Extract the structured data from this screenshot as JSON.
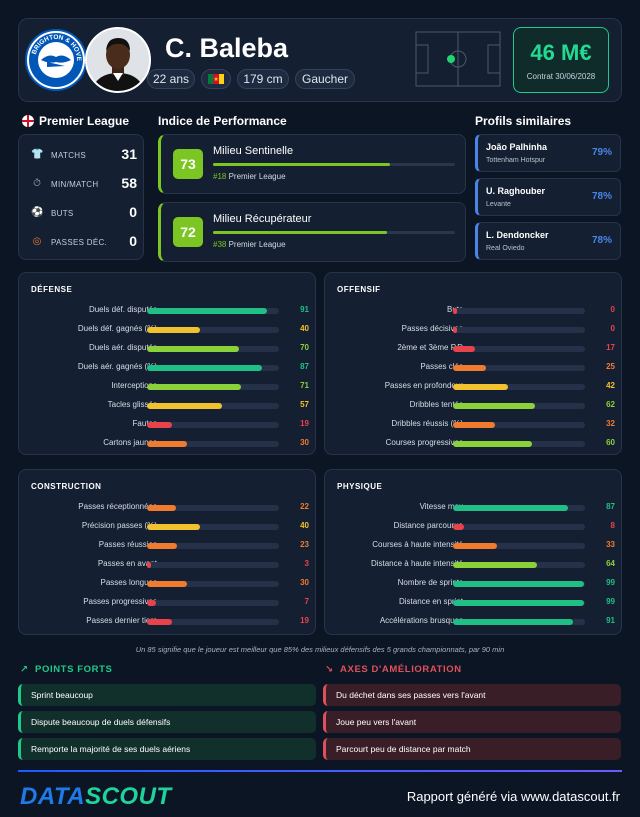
{
  "player": {
    "name": "C. Baleba",
    "age": "22 ans",
    "height": "179 cm",
    "foot": "Gaucher",
    "market_value": "46 M€",
    "contract": "Contrat 30/06/2028"
  },
  "club": {
    "logo_text_top": "BRIGHTON & HOVE",
    "logo_text_bottom": "ALBION"
  },
  "league": {
    "name": "Premier League",
    "stats": [
      {
        "label": "MATCHS",
        "value": "31",
        "icon": "shirt-icon"
      },
      {
        "label": "MIN/MATCH",
        "value": "58",
        "icon": "stopwatch-icon"
      },
      {
        "label": "BUTS",
        "value": "0",
        "icon": "ball-icon"
      },
      {
        "label": "PASSES DÉC.",
        "value": "0",
        "icon": "target-icon"
      }
    ]
  },
  "performance": {
    "title": "Indice de Performance",
    "items": [
      {
        "score": "73",
        "role": "Milieu Sentinelle",
        "rank": "#18",
        "league": "Premier League",
        "fraction": 0.73
      },
      {
        "score": "72",
        "role": "Milieu Récupérateur",
        "rank": "#38",
        "league": "Premier League",
        "fraction": 0.72
      }
    ]
  },
  "similar": {
    "title": "Profils similaires",
    "items": [
      {
        "name": "João Palhinha",
        "club": "Tottenham Hotspur",
        "pct": "79%"
      },
      {
        "name": "U. Raghouber",
        "club": "Levante",
        "pct": "78%"
      },
      {
        "name": "L. Dendoncker",
        "club": "Real Oviedo",
        "pct": "78%"
      }
    ]
  },
  "panels": [
    {
      "title": "DÉFENSE",
      "rows": [
        {
          "label": "Duels déf. disputés",
          "value": "91"
        },
        {
          "label": "Duels déf. gagnés (%)",
          "value": "40"
        },
        {
          "label": "Duels aér. disputés",
          "value": "70"
        },
        {
          "label": "Duels aér. gagnés (%)",
          "value": "87"
        },
        {
          "label": "Interceptions",
          "value": "71"
        },
        {
          "label": "Tacles glissés",
          "value": "57"
        },
        {
          "label": "Fautes",
          "value": "19"
        },
        {
          "label": "Cartons jaunes",
          "value": "30"
        }
      ]
    },
    {
      "title": "OFFENSIF",
      "rows": [
        {
          "label": "Buts",
          "value": "0"
        },
        {
          "label": "Passes décisives",
          "value": "0"
        },
        {
          "label": "2ème et 3ème P.D",
          "value": "17"
        },
        {
          "label": "Passes clés",
          "value": "25"
        },
        {
          "label": "Passes en profondeur",
          "value": "42"
        },
        {
          "label": "Dribbles tentés",
          "value": "62"
        },
        {
          "label": "Dribbles réussis (%)",
          "value": "32"
        },
        {
          "label": "Courses progressives",
          "value": "60"
        }
      ]
    },
    {
      "title": "CONSTRUCTION",
      "rows": [
        {
          "label": "Passes réceptionnées",
          "value": "22"
        },
        {
          "label": "Précision passes (%)",
          "value": "40"
        },
        {
          "label": "Passes réussies",
          "value": "23"
        },
        {
          "label": "Passes en avant",
          "value": "3"
        },
        {
          "label": "Passes longues",
          "value": "30"
        },
        {
          "label": "Passes progressives",
          "value": "7"
        },
        {
          "label": "Passes dernier tiers",
          "value": "19"
        }
      ]
    },
    {
      "title": "PHYSIQUE",
      "rows": [
        {
          "label": "Vitesse max",
          "value": "87"
        },
        {
          "label": "Distance parcourue",
          "value": "8"
        },
        {
          "label": "Courses à haute intensité",
          "value": "33"
        },
        {
          "label": "Distance à haute intensité",
          "value": "64"
        },
        {
          "label": "Nombre de sprints",
          "value": "99"
        },
        {
          "label": "Distance en sprint",
          "value": "99"
        },
        {
          "label": "Accélérations brusques",
          "value": "91"
        }
      ]
    }
  ],
  "footnote": "Un 85 signifie que le joueur est meilleur que 85% des milieux défensifs des 5 grands championnats, par 90 min",
  "strengths": {
    "title": "POINTS FORTS",
    "items": [
      "Sprint beaucoup",
      "Dispute beaucoup de duels défensifs",
      "Remporte la majorité de ses duels aériens"
    ]
  },
  "weaknesses": {
    "title": "AXES D'AMÉLIORATION",
    "items": [
      "Du déchet dans ses passes vers l'avant",
      "Joue peu vers l'avant",
      "Parcourt peu de distance par match"
    ]
  },
  "footer": {
    "brand_part1": "DATA",
    "brand_part2": "SCOUT",
    "report": "Rapport généré via www.datascout.fr"
  },
  "colors": {
    "accent_green": "#1fc98a",
    "perf_green": "#7bc623",
    "similar_blue": "#4a86e8",
    "weak_red": "#e0505b",
    "bar_red": "#e8434d",
    "bar_orange": "#f07b2e",
    "bar_yellow": "#f2c12e",
    "bar_lightgreen": "#8bd13a",
    "bar_teal": "#1fbf86"
  }
}
